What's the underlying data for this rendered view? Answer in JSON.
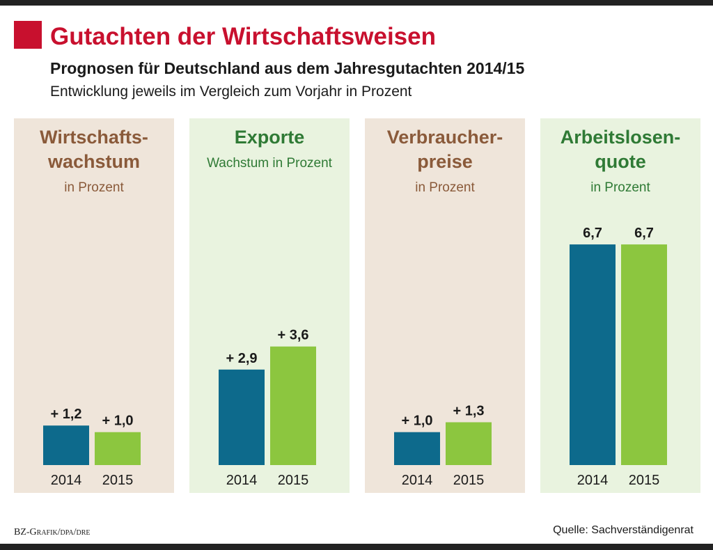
{
  "title": "Gutachten der Wirtschaftsweisen",
  "subtitle": "Prognosen für Deutschland aus dem Jahresgutachten 2014/15",
  "note": "Entwicklung jeweils im Vergleich zum Vorjahr in Prozent",
  "credit": "BZ-Grafik/dpa/dre",
  "source": "Quelle: Sachverständigenrat",
  "chart_data": [
    {
      "type": "bar",
      "title": [
        "Wirtschafts-",
        "wachstum"
      ],
      "subtitle": "in Prozent",
      "title_color": "#8a5a3a",
      "background": "#efe5da",
      "categories": [
        "2014",
        "2015"
      ],
      "values": [
        1.2,
        1.0
      ],
      "value_labels": [
        "+ 1,2",
        "+ 1,0"
      ],
      "colors": [
        "#0d6a8c",
        "#8cc63f"
      ]
    },
    {
      "type": "bar",
      "title": [
        "Exporte"
      ],
      "subtitle": "Wachstum in Prozent",
      "title_color": "#2f7a35",
      "background": "#e9f3df",
      "categories": [
        "2014",
        "2015"
      ],
      "values": [
        2.9,
        3.6
      ],
      "value_labels": [
        "+ 2,9",
        "+ 3,6"
      ],
      "colors": [
        "#0d6a8c",
        "#8cc63f"
      ]
    },
    {
      "type": "bar",
      "title": [
        "Verbraucher-",
        "preise"
      ],
      "subtitle": "in Prozent",
      "title_color": "#8a5a3a",
      "background": "#efe5da",
      "categories": [
        "2014",
        "2015"
      ],
      "values": [
        1.0,
        1.3
      ],
      "value_labels": [
        "+ 1,0",
        "+ 1,3"
      ],
      "colors": [
        "#0d6a8c",
        "#8cc63f"
      ]
    },
    {
      "type": "bar",
      "title": [
        "Arbeitslosen-",
        "quote"
      ],
      "subtitle": "in Prozent",
      "title_color": "#2f7a35",
      "background": "#e9f3df",
      "categories": [
        "2014",
        "2015"
      ],
      "values": [
        6.7,
        6.7
      ],
      "value_labels": [
        "6,7",
        "6,7"
      ],
      "colors": [
        "#0d6a8c",
        "#8cc63f"
      ]
    }
  ]
}
